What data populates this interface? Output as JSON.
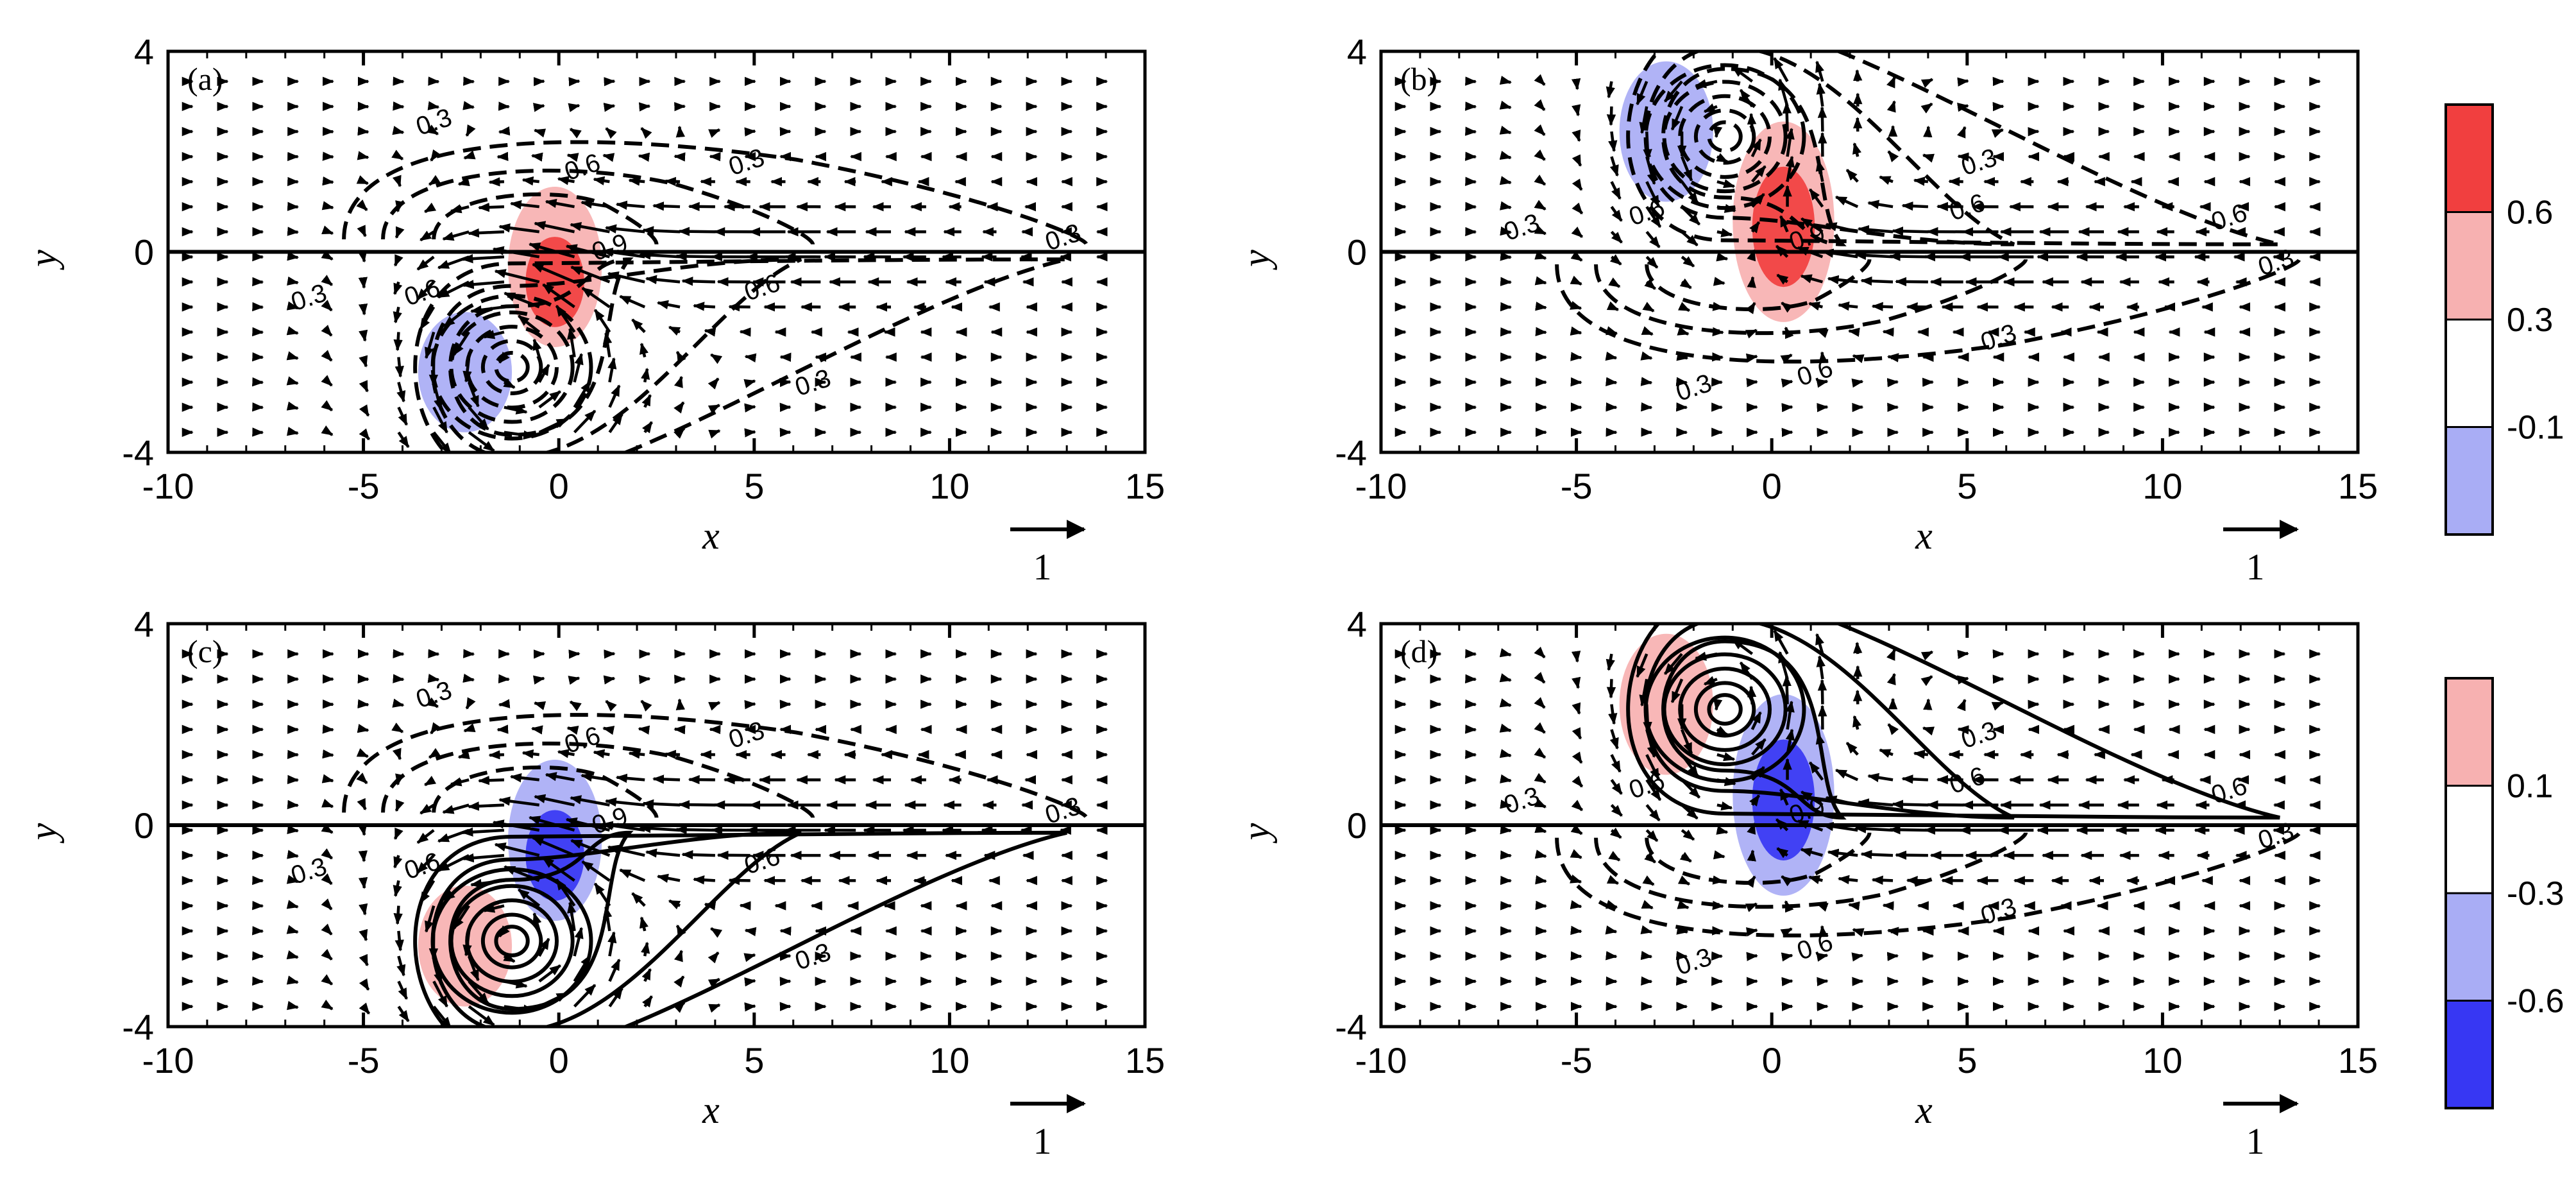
{
  "chart_data": [
    {
      "type": "contour",
      "panel": "(a)",
      "xlabel": "x",
      "ylabel": "y",
      "xlim": [
        -10,
        15
      ],
      "ylim": [
        -4,
        4
      ],
      "xticks": [
        "-10",
        "-5",
        "0",
        "5",
        "10",
        "15"
      ],
      "yticks": [
        "-4",
        "0",
        "4"
      ],
      "contour_style": "dashed",
      "vortex_center": [
        -1.2,
        -2.3
      ],
      "shading": [
        {
          "x": -0.1,
          "y": -0.3,
          "rx": 1.2,
          "ry": 1.6,
          "level": "0.6"
        },
        {
          "x": -0.1,
          "y": -0.6,
          "rx": 0.75,
          "ry": 0.9,
          "level": "max"
        },
        {
          "x": -2.4,
          "y": -2.4,
          "rx": 1.2,
          "ry": 1.2,
          "level": "-0.1"
        }
      ],
      "contour_labels": [
        {
          "x": -3.2,
          "y": 2.6,
          "text": "0.3"
        },
        {
          "x": 0.6,
          "y": 1.7,
          "text": "0.6"
        },
        {
          "x": 4.8,
          "y": 1.8,
          "text": "0.3"
        },
        {
          "x": 12.9,
          "y": 0.3,
          "text": "0.3"
        },
        {
          "x": -6.4,
          "y": -0.9,
          "text": "0.3"
        },
        {
          "x": -3.5,
          "y": -0.8,
          "text": "0.6"
        },
        {
          "x": 1.3,
          "y": 0.1,
          "text": "0.9"
        },
        {
          "x": 5.2,
          "y": -0.7,
          "text": "0.6"
        },
        {
          "x": 6.5,
          "y": -2.6,
          "text": "0.3"
        }
      ],
      "reference_vector": "1"
    },
    {
      "type": "contour",
      "panel": "(b)",
      "xlabel": "x",
      "ylabel": "y",
      "xlim": [
        -10,
        15
      ],
      "ylim": [
        -4,
        4
      ],
      "xticks": [
        "-10",
        "-5",
        "0",
        "5",
        "10",
        "15"
      ],
      "yticks": [
        "-4",
        "0",
        "4"
      ],
      "contour_style": "dashed",
      "vortex_center": [
        -1.2,
        2.3
      ],
      "shading": [
        {
          "x": 0.3,
          "y": 0.6,
          "rx": 1.3,
          "ry": 2.0,
          "level": "0.6"
        },
        {
          "x": 0.3,
          "y": 0.5,
          "rx": 0.8,
          "ry": 1.2,
          "level": "max"
        },
        {
          "x": -2.7,
          "y": 2.4,
          "rx": 1.2,
          "ry": 1.4,
          "level": "-0.1"
        }
      ],
      "contour_labels": [
        {
          "x": 5.3,
          "y": 1.8,
          "text": "0.3"
        },
        {
          "x": 5.0,
          "y": 0.9,
          "text": "0.6"
        },
        {
          "x": 11.7,
          "y": 0.7,
          "text": "0.6"
        },
        {
          "x": 12.9,
          "y": -0.2,
          "text": "0.3"
        },
        {
          "x": -6.4,
          "y": 0.5,
          "text": "0.3"
        },
        {
          "x": -3.2,
          "y": 0.8,
          "text": "0.6"
        },
        {
          "x": 0.9,
          "y": 0.3,
          "text": "0.9"
        },
        {
          "x": 1.1,
          "y": -2.4,
          "text": "0.6"
        },
        {
          "x": 5.8,
          "y": -1.7,
          "text": "0.3"
        },
        {
          "x": -2.0,
          "y": -2.7,
          "text": "0.3"
        }
      ],
      "reference_vector": "1"
    },
    {
      "type": "contour",
      "panel": "(c)",
      "xlabel": "x",
      "ylabel": "y",
      "xlim": [
        -10,
        15
      ],
      "ylim": [
        -4,
        4
      ],
      "xticks": [
        "-10",
        "-5",
        "0",
        "5",
        "10",
        "15"
      ],
      "yticks": [
        "-4",
        "0",
        "4"
      ],
      "contour_style": "solid",
      "vortex_center": [
        -1.2,
        -2.3
      ],
      "shading": [
        {
          "x": -0.1,
          "y": -0.3,
          "rx": 1.2,
          "ry": 1.6,
          "level": "-0.3"
        },
        {
          "x": -0.1,
          "y": -0.6,
          "rx": 0.75,
          "ry": 0.9,
          "level": "-0.6"
        },
        {
          "x": -2.4,
          "y": -2.4,
          "rx": 1.2,
          "ry": 1.2,
          "level": "max"
        }
      ],
      "contour_labels": [
        {
          "x": -3.2,
          "y": 2.6,
          "text": "0.3"
        },
        {
          "x": 0.6,
          "y": 1.7,
          "text": "0.6"
        },
        {
          "x": 4.8,
          "y": 1.8,
          "text": "0.3"
        },
        {
          "x": 12.9,
          "y": 0.3,
          "text": "0.3"
        },
        {
          "x": -6.4,
          "y": -0.9,
          "text": "0.3"
        },
        {
          "x": -3.5,
          "y": -0.8,
          "text": "0.6"
        },
        {
          "x": 1.3,
          "y": 0.1,
          "text": "0.9"
        },
        {
          "x": 5.2,
          "y": -0.7,
          "text": "0.6"
        },
        {
          "x": 6.5,
          "y": -2.6,
          "text": "0.3"
        }
      ],
      "reference_vector": "1"
    },
    {
      "type": "contour",
      "panel": "(d)",
      "xlabel": "x",
      "ylabel": "y",
      "xlim": [
        -10,
        15
      ],
      "ylim": [
        -4,
        4
      ],
      "xticks": [
        "-10",
        "-5",
        "0",
        "5",
        "10",
        "15"
      ],
      "yticks": [
        "-4",
        "0",
        "4"
      ],
      "contour_style": "solid",
      "vortex_center": [
        -1.2,
        2.3
      ],
      "shading": [
        {
          "x": 0.3,
          "y": 0.6,
          "rx": 1.3,
          "ry": 2.0,
          "level": "-0.3"
        },
        {
          "x": 0.3,
          "y": 0.5,
          "rx": 0.8,
          "ry": 1.2,
          "level": "-0.6"
        },
        {
          "x": -2.7,
          "y": 2.4,
          "rx": 1.2,
          "ry": 1.4,
          "level": "max"
        }
      ],
      "contour_labels": [
        {
          "x": 5.3,
          "y": 1.8,
          "text": "0.3"
        },
        {
          "x": 5.0,
          "y": 0.9,
          "text": "0.6"
        },
        {
          "x": 11.7,
          "y": 0.7,
          "text": "0.6"
        },
        {
          "x": 12.9,
          "y": -0.2,
          "text": "0.3"
        },
        {
          "x": -6.4,
          "y": 0.5,
          "text": "0.3"
        },
        {
          "x": -3.2,
          "y": 0.8,
          "text": "0.6"
        },
        {
          "x": 0.9,
          "y": 0.3,
          "text": "0.9"
        },
        {
          "x": 1.1,
          "y": -2.4,
          "text": "0.6"
        },
        {
          "x": 5.8,
          "y": -1.7,
          "text": "0.3"
        },
        {
          "x": -2.0,
          "y": -2.7,
          "text": "0.3"
        }
      ],
      "reference_vector": "1"
    }
  ],
  "colorbars": [
    {
      "colors": [
        "#a9adf5",
        "#ffffff",
        "#f7b1b1",
        "#f13f3f"
      ],
      "labels": [
        "-0.1",
        "0.3",
        "0.6"
      ]
    },
    {
      "colors": [
        "#3737f3",
        "#a9adf5",
        "#ffffff",
        "#f7b1b1"
      ],
      "labels": [
        "-0.6",
        "-0.3",
        "0.1"
      ]
    }
  ],
  "colors": {
    "strong_red": "#f13f3f",
    "light_red": "#f7b1b1",
    "light_blue": "#a9adf5",
    "strong_blue": "#3737f3"
  }
}
